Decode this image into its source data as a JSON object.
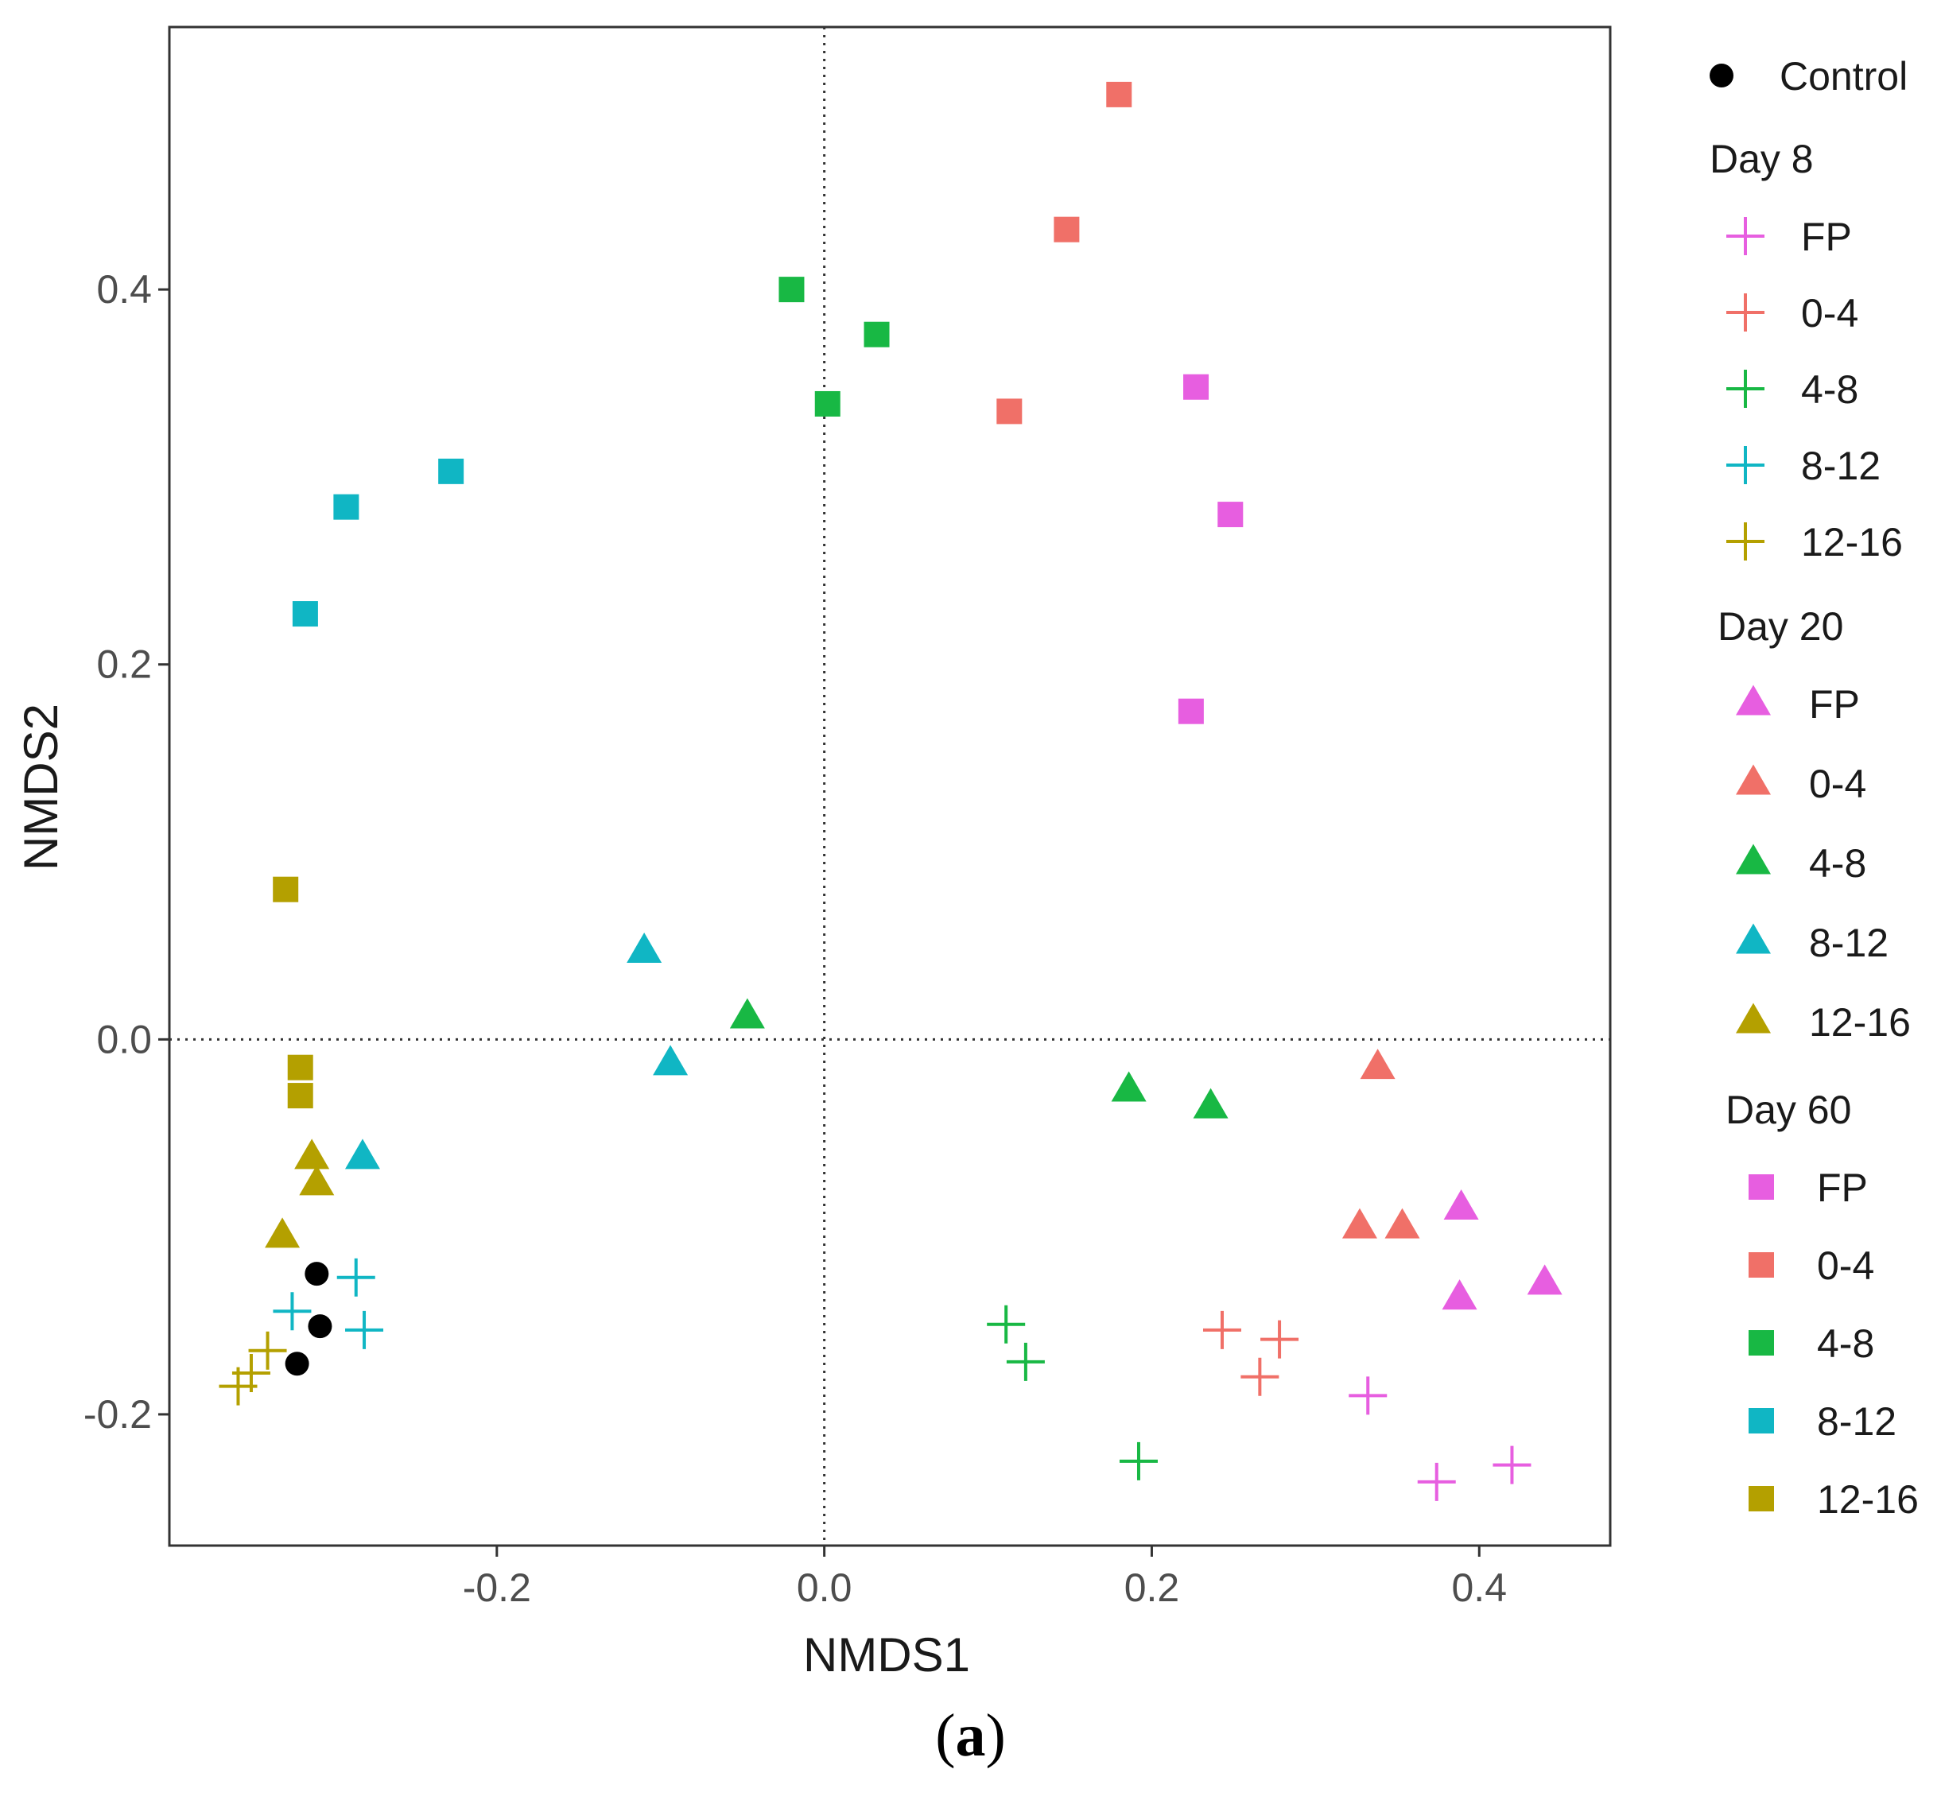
{
  "chart_data": {
    "type": "scatter",
    "xlabel": "NMDS1",
    "ylabel": "NMDS2",
    "xlim": [
      -0.4,
      0.48
    ],
    "ylim": [
      -0.27,
      0.54
    ],
    "xticks": [
      -0.2,
      0.0,
      0.2,
      0.4
    ],
    "xtick_labels": [
      "-0.2",
      "0.0",
      "0.2",
      "0.4"
    ],
    "yticks": [
      -0.2,
      0.0,
      0.2,
      0.4
    ],
    "ytick_labels": [
      "-0.2",
      "0.0",
      "0.2",
      "0.4"
    ],
    "reference_lines": {
      "x": 0,
      "y": 0
    },
    "grid": false,
    "colors": {
      "FP": "#e75ee0",
      "0-4": "#f07068",
      "4-8": "#18b844",
      "8-12": "#10b6c4",
      "12-16": "#b4a000",
      "Control": "#000000"
    },
    "legend": {
      "position": "right",
      "control_label": "Control",
      "groups": [
        {
          "title": "Day  8",
          "shape": "plus",
          "items": [
            "FP",
            "0-4",
            "4-8",
            "8-12",
            "12-16"
          ]
        },
        {
          "title": "Day  20",
          "shape": "triangle",
          "items": [
            "FP",
            "0-4",
            "4-8",
            "8-12",
            "12-16"
          ]
        },
        {
          "title": "Day  60",
          "shape": "square",
          "items": [
            "FP",
            "0-4",
            "4-8",
            "8-12",
            "12-16"
          ]
        }
      ]
    },
    "series": [
      {
        "name": "Control",
        "shape": "circle",
        "group": "Control",
        "points": [
          [
            -0.31,
            -0.125
          ],
          [
            -0.308,
            -0.153
          ],
          [
            -0.322,
            -0.173
          ]
        ]
      },
      {
        "name": "Day 8 FP",
        "shape": "plus",
        "group": "FP",
        "points": [
          [
            0.332,
            -0.19
          ],
          [
            0.374,
            -0.236
          ],
          [
            0.42,
            -0.227
          ]
        ]
      },
      {
        "name": "Day 8 0-4",
        "shape": "plus",
        "group": "0-4",
        "points": [
          [
            0.243,
            -0.155
          ],
          [
            0.278,
            -0.16
          ],
          [
            0.266,
            -0.18
          ]
        ]
      },
      {
        "name": "Day 8 4-8",
        "shape": "plus",
        "group": "4-8",
        "points": [
          [
            0.111,
            -0.152
          ],
          [
            0.123,
            -0.172
          ],
          [
            0.192,
            -0.225
          ]
        ]
      },
      {
        "name": "Day 8 8-12",
        "shape": "plus",
        "group": "8-12",
        "points": [
          [
            -0.286,
            -0.127
          ],
          [
            -0.325,
            -0.145
          ],
          [
            -0.281,
            -0.155
          ]
        ]
      },
      {
        "name": "Day 8 12-16",
        "shape": "plus",
        "group": "12-16",
        "points": [
          [
            -0.34,
            -0.166
          ],
          [
            -0.35,
            -0.178
          ],
          [
            -0.358,
            -0.185
          ]
        ]
      },
      {
        "name": "Day 20 FP",
        "shape": "triangle",
        "group": "FP",
        "points": [
          [
            0.389,
            -0.09
          ],
          [
            0.388,
            -0.138
          ],
          [
            0.44,
            -0.13
          ]
        ]
      },
      {
        "name": "Day 20 0-4",
        "shape": "triangle",
        "group": "0-4",
        "points": [
          [
            0.338,
            -0.015
          ],
          [
            0.327,
            -0.1
          ],
          [
            0.353,
            -0.1
          ]
        ]
      },
      {
        "name": "Day 20 4-8",
        "shape": "triangle",
        "group": "4-8",
        "points": [
          [
            -0.047,
            0.012
          ],
          [
            0.186,
            -0.027
          ],
          [
            0.236,
            -0.036
          ]
        ]
      },
      {
        "name": "Day 20 8-12",
        "shape": "triangle",
        "group": "8-12",
        "points": [
          [
            -0.11,
            0.047
          ],
          [
            -0.094,
            -0.013
          ],
          [
            -0.282,
            -0.063
          ]
        ]
      },
      {
        "name": "Day 20 12-16",
        "shape": "triangle",
        "group": "12-16",
        "points": [
          [
            -0.313,
            -0.063
          ],
          [
            -0.31,
            -0.077
          ],
          [
            -0.331,
            -0.105
          ]
        ]
      },
      {
        "name": "Day 60 FP",
        "shape": "square",
        "group": "FP",
        "points": [
          [
            0.227,
            0.348
          ],
          [
            0.248,
            0.28
          ],
          [
            0.224,
            0.175
          ]
        ]
      },
      {
        "name": "Day 60 0-4",
        "shape": "square",
        "group": "0-4",
        "points": [
          [
            0.18,
            0.504
          ],
          [
            0.148,
            0.432
          ],
          [
            0.113,
            0.335
          ]
        ]
      },
      {
        "name": "Day 60 4-8",
        "shape": "square",
        "group": "4-8",
        "points": [
          [
            -0.02,
            0.4
          ],
          [
            0.032,
            0.376
          ],
          [
            0.002,
            0.339
          ]
        ]
      },
      {
        "name": "Day 60 8-12",
        "shape": "square",
        "group": "8-12",
        "points": [
          [
            -0.228,
            0.303
          ],
          [
            -0.292,
            0.284
          ],
          [
            -0.317,
            0.227
          ]
        ]
      },
      {
        "name": "Day 60 12-16",
        "shape": "square",
        "group": "12-16",
        "points": [
          [
            -0.329,
            0.08
          ],
          [
            -0.32,
            -0.015
          ],
          [
            -0.32,
            -0.03
          ]
        ]
      }
    ]
  },
  "caption": {
    "open": "(",
    "letter": "a",
    "close": ")"
  }
}
